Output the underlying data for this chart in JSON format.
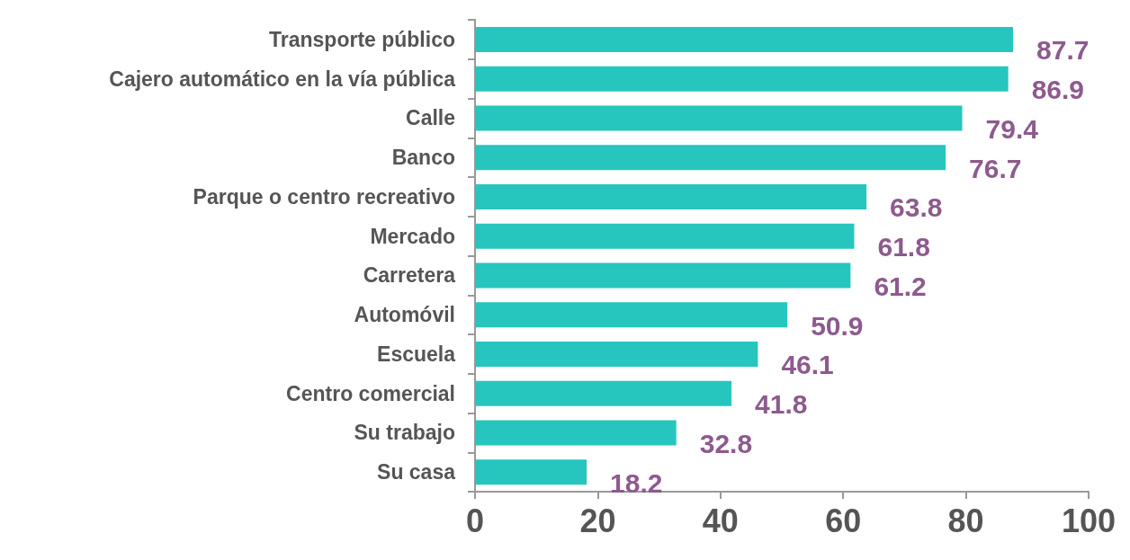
{
  "chart_data": {
    "type": "bar",
    "orientation": "horizontal",
    "categories": [
      "Transporte público",
      "Cajero automático en la vía pública",
      "Calle",
      "Banco",
      "Parque o centro recreativo",
      "Mercado",
      "Carretera",
      "Automóvil",
      "Escuela",
      "Centro comercial",
      "Su trabajo",
      "Su casa"
    ],
    "values": [
      87.7,
      86.9,
      79.4,
      76.7,
      63.8,
      61.8,
      61.2,
      50.9,
      46.1,
      41.8,
      32.8,
      18.2
    ],
    "color": "#26c6be",
    "xlim": [
      0,
      100
    ],
    "xticks": [
      0,
      20,
      40,
      60,
      80,
      100
    ],
    "data_labels": true,
    "grid": false
  }
}
